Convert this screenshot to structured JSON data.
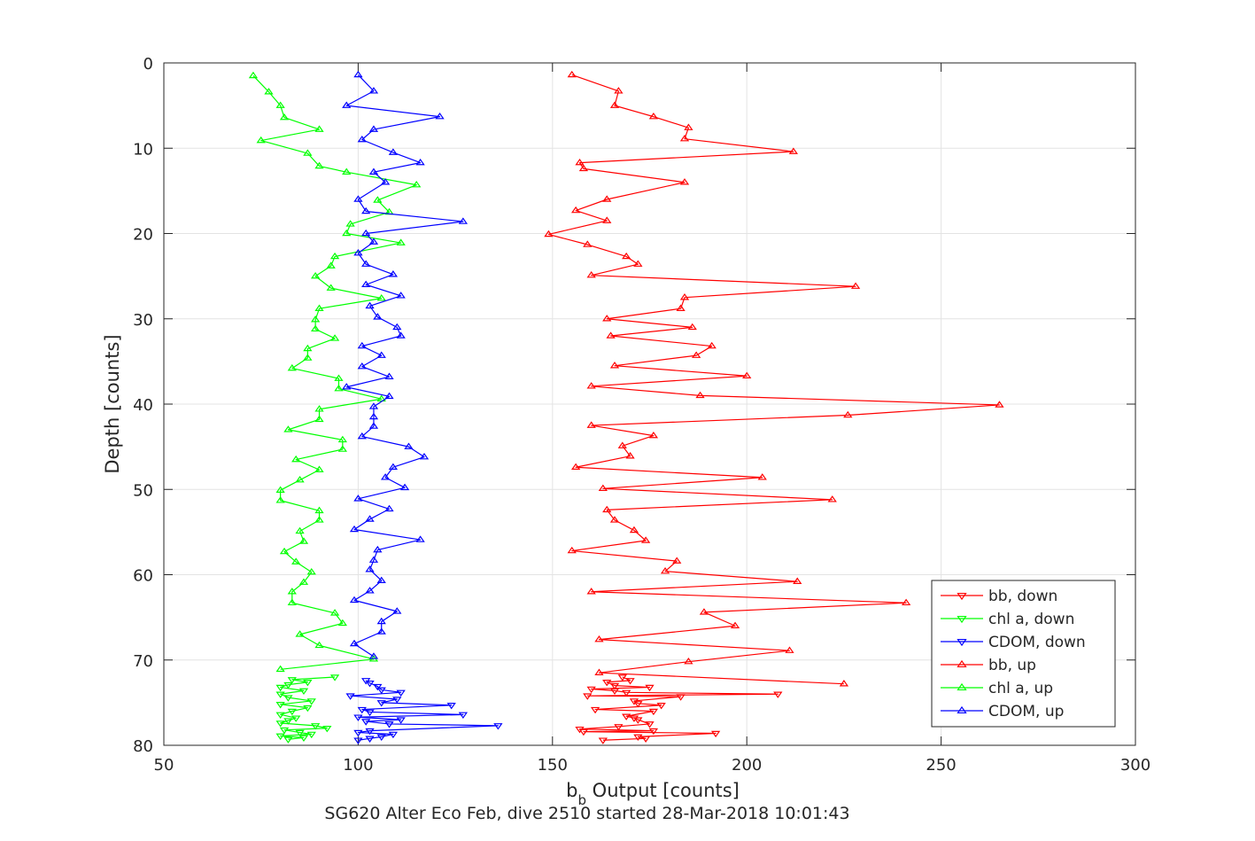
{
  "chart_data": {
    "type": "line",
    "title": "",
    "xlabel": "b_b Output [counts]",
    "xlabel_main": "b",
    "xlabel_sub": "b",
    "xlabel_rest": " Output [counts]",
    "ylabel": "Depth [counts]",
    "xlim": [
      50,
      300
    ],
    "ylim": [
      0,
      80
    ],
    "y_reversed": true,
    "x_ticks": [
      50,
      100,
      150,
      200,
      250,
      300
    ],
    "y_ticks": [
      0,
      10,
      20,
      30,
      40,
      50,
      60,
      70,
      80
    ],
    "grid": true,
    "legend_position": "bottom-right",
    "footer": "SG620 Alter Eco Feb, dive 2510 started 28-Mar-2018 10:01:43",
    "series": [
      {
        "name": "bb, down",
        "color": "#ff0000",
        "marker": "triangle-down",
        "points": [
          [
            163,
            79.4
          ],
          [
            174,
            79.2
          ],
          [
            172,
            79.0
          ],
          [
            192,
            78.6
          ],
          [
            158,
            78.4
          ],
          [
            176,
            78.3
          ],
          [
            157,
            78.1
          ],
          [
            167,
            77.8
          ],
          [
            175,
            77.5
          ],
          [
            172,
            77.0
          ],
          [
            171,
            76.8
          ],
          [
            169,
            76.6
          ],
          [
            176,
            76.0
          ],
          [
            161,
            75.8
          ],
          [
            178,
            75.3
          ],
          [
            172,
            75.1
          ],
          [
            171,
            74.8
          ],
          [
            183,
            74.3
          ],
          [
            159,
            74.2
          ],
          [
            208,
            74.0
          ],
          [
            169,
            73.8
          ],
          [
            166,
            73.6
          ],
          [
            160,
            73.4
          ],
          [
            175,
            73.2
          ],
          [
            166,
            73.0
          ],
          [
            164,
            72.6
          ],
          [
            170,
            72.4
          ],
          [
            168,
            72.0
          ]
        ]
      },
      {
        "name": "chl a, down",
        "color": "#00ff00",
        "marker": "triangle-down",
        "points": [
          [
            82,
            79.3
          ],
          [
            86,
            79.1
          ],
          [
            80,
            78.9
          ],
          [
            88,
            78.7
          ],
          [
            85,
            78.5
          ],
          [
            81,
            78.2
          ],
          [
            92,
            78.0
          ],
          [
            89,
            77.7
          ],
          [
            80,
            77.4
          ],
          [
            82,
            77.1
          ],
          [
            84,
            76.8
          ],
          [
            80,
            76.4
          ],
          [
            83,
            76.0
          ],
          [
            87,
            75.6
          ],
          [
            80,
            75.2
          ],
          [
            88,
            74.8
          ],
          [
            82,
            74.4
          ],
          [
            80,
            74.0
          ],
          [
            86,
            73.6
          ],
          [
            80,
            73.2
          ],
          [
            82,
            72.9
          ],
          [
            87,
            72.6
          ],
          [
            83,
            72.3
          ],
          [
            94,
            72.0
          ]
        ]
      },
      {
        "name": "CDOM, down",
        "color": "#0000ff",
        "marker": "triangle-down",
        "points": [
          [
            100,
            79.4
          ],
          [
            103,
            79.2
          ],
          [
            106,
            79.0
          ],
          [
            109,
            78.7
          ],
          [
            100,
            78.5
          ],
          [
            103,
            78.3
          ],
          [
            136,
            77.7
          ],
          [
            108,
            77.5
          ],
          [
            102,
            77.2
          ],
          [
            111,
            77.0
          ],
          [
            100,
            76.7
          ],
          [
            127,
            76.4
          ],
          [
            103,
            76.1
          ],
          [
            101,
            75.8
          ],
          [
            124,
            75.3
          ],
          [
            106,
            75.0
          ],
          [
            110,
            74.6
          ],
          [
            98,
            74.2
          ],
          [
            111,
            73.8
          ],
          [
            106,
            73.5
          ],
          [
            105,
            73.1
          ],
          [
            103,
            72.7
          ],
          [
            102,
            72.4
          ]
        ]
      },
      {
        "name": "bb, up",
        "color": "#ff0000",
        "marker": "triangle-up",
        "points": [
          [
            155,
            1.4
          ],
          [
            167,
            3.3
          ],
          [
            166,
            5.0
          ],
          [
            176,
            6.3
          ],
          [
            185,
            7.6
          ],
          [
            184,
            8.9
          ],
          [
            212,
            10.4
          ],
          [
            157,
            11.7
          ],
          [
            158,
            12.4
          ],
          [
            184,
            14.0
          ],
          [
            164,
            16.0
          ],
          [
            156,
            17.3
          ],
          [
            164,
            18.5
          ],
          [
            149,
            20.1
          ],
          [
            159,
            21.3
          ],
          [
            169,
            22.7
          ],
          [
            172,
            23.6
          ],
          [
            160,
            24.9
          ],
          [
            228,
            26.2
          ],
          [
            184,
            27.5
          ],
          [
            183,
            28.8
          ],
          [
            164,
            30.0
          ],
          [
            186,
            31.0
          ],
          [
            165,
            32.0
          ],
          [
            191,
            33.2
          ],
          [
            187,
            34.3
          ],
          [
            166,
            35.5
          ],
          [
            200,
            36.7
          ],
          [
            160,
            37.9
          ],
          [
            188,
            39.0
          ],
          [
            265,
            40.1
          ],
          [
            226,
            41.3
          ],
          [
            160,
            42.5
          ],
          [
            176,
            43.7
          ],
          [
            168,
            44.9
          ],
          [
            170,
            46.1
          ],
          [
            156,
            47.4
          ],
          [
            204,
            48.6
          ],
          [
            163,
            49.9
          ],
          [
            222,
            51.2
          ],
          [
            164,
            52.4
          ],
          [
            166,
            53.6
          ],
          [
            171,
            54.8
          ],
          [
            174,
            56.0
          ],
          [
            155,
            57.2
          ],
          [
            182,
            58.4
          ],
          [
            179,
            59.6
          ],
          [
            213,
            60.8
          ],
          [
            160,
            62.0
          ],
          [
            241,
            63.3
          ],
          [
            189,
            64.4
          ],
          [
            197,
            66.0
          ],
          [
            162,
            67.6
          ],
          [
            211,
            68.9
          ],
          [
            185,
            70.2
          ],
          [
            162,
            71.5
          ],
          [
            225,
            72.8
          ]
        ]
      },
      {
        "name": "chl a, up",
        "color": "#00ff00",
        "marker": "triangle-up",
        "points": [
          [
            73,
            1.5
          ],
          [
            77,
            3.4
          ],
          [
            80,
            5.0
          ],
          [
            81,
            6.4
          ],
          [
            90,
            7.8
          ],
          [
            75,
            9.1
          ],
          [
            87,
            10.6
          ],
          [
            90,
            12.1
          ],
          [
            97,
            12.8
          ],
          [
            115,
            14.3
          ],
          [
            105,
            16.1
          ],
          [
            108,
            17.5
          ],
          [
            98,
            18.9
          ],
          [
            97,
            20.0
          ],
          [
            111,
            21.1
          ],
          [
            94,
            22.7
          ],
          [
            93,
            23.8
          ],
          [
            89,
            25.0
          ],
          [
            93,
            26.4
          ],
          [
            106,
            27.6
          ],
          [
            90,
            28.8
          ],
          [
            89,
            30.1
          ],
          [
            89,
            31.2
          ],
          [
            94,
            32.3
          ],
          [
            87,
            33.5
          ],
          [
            87,
            34.6
          ],
          [
            83,
            35.8
          ],
          [
            95,
            37.0
          ],
          [
            95,
            38.2
          ],
          [
            106,
            39.4
          ],
          [
            90,
            40.6
          ],
          [
            90,
            41.8
          ],
          [
            82,
            43.0
          ],
          [
            96,
            44.2
          ],
          [
            96,
            45.3
          ],
          [
            84,
            46.5
          ],
          [
            90,
            47.7
          ],
          [
            85,
            48.9
          ],
          [
            80,
            50.1
          ],
          [
            80,
            51.3
          ],
          [
            90,
            52.5
          ],
          [
            90,
            53.6
          ],
          [
            85,
            54.9
          ],
          [
            86,
            56.1
          ],
          [
            81,
            57.3
          ],
          [
            84,
            58.5
          ],
          [
            88,
            59.7
          ],
          [
            86,
            60.9
          ],
          [
            83,
            62.0
          ],
          [
            83,
            63.3
          ],
          [
            94,
            64.5
          ],
          [
            96,
            65.7
          ],
          [
            85,
            67.0
          ],
          [
            90,
            68.3
          ],
          [
            104,
            69.9
          ],
          [
            80,
            71.1
          ]
        ]
      },
      {
        "name": "CDOM, up",
        "color": "#0000ff",
        "marker": "triangle-up",
        "points": [
          [
            100,
            1.4
          ],
          [
            104,
            3.3
          ],
          [
            97,
            5.0
          ],
          [
            121,
            6.3
          ],
          [
            104,
            7.8
          ],
          [
            101,
            9.0
          ],
          [
            109,
            10.5
          ],
          [
            116,
            11.7
          ],
          [
            104,
            12.8
          ],
          [
            107,
            14.0
          ],
          [
            100,
            16.0
          ],
          [
            102,
            17.4
          ],
          [
            127,
            18.6
          ],
          [
            102,
            20.0
          ],
          [
            104,
            21.0
          ],
          [
            100,
            22.3
          ],
          [
            102,
            23.6
          ],
          [
            109,
            24.8
          ],
          [
            102,
            26.0
          ],
          [
            111,
            27.3
          ],
          [
            103,
            28.5
          ],
          [
            105,
            29.8
          ],
          [
            110,
            31.0
          ],
          [
            111,
            32.0
          ],
          [
            101,
            33.2
          ],
          [
            106,
            34.3
          ],
          [
            101,
            35.6
          ],
          [
            108,
            36.8
          ],
          [
            97,
            38.0
          ],
          [
            108,
            39.1
          ],
          [
            104,
            40.3
          ],
          [
            104,
            41.5
          ],
          [
            104,
            42.6
          ],
          [
            101,
            43.8
          ],
          [
            113,
            45.0
          ],
          [
            117,
            46.2
          ],
          [
            109,
            47.4
          ],
          [
            107,
            48.6
          ],
          [
            112,
            49.8
          ],
          [
            100,
            51.1
          ],
          [
            108,
            52.3
          ],
          [
            103,
            53.5
          ],
          [
            99,
            54.7
          ],
          [
            116,
            55.9
          ],
          [
            105,
            57.1
          ],
          [
            104,
            58.3
          ],
          [
            103,
            59.4
          ],
          [
            106,
            60.7
          ],
          [
            103,
            61.9
          ],
          [
            99,
            63.0
          ],
          [
            110,
            64.3
          ],
          [
            106,
            65.5
          ],
          [
            106,
            66.7
          ],
          [
            99,
            68.1
          ],
          [
            104,
            69.6
          ]
        ]
      }
    ]
  }
}
